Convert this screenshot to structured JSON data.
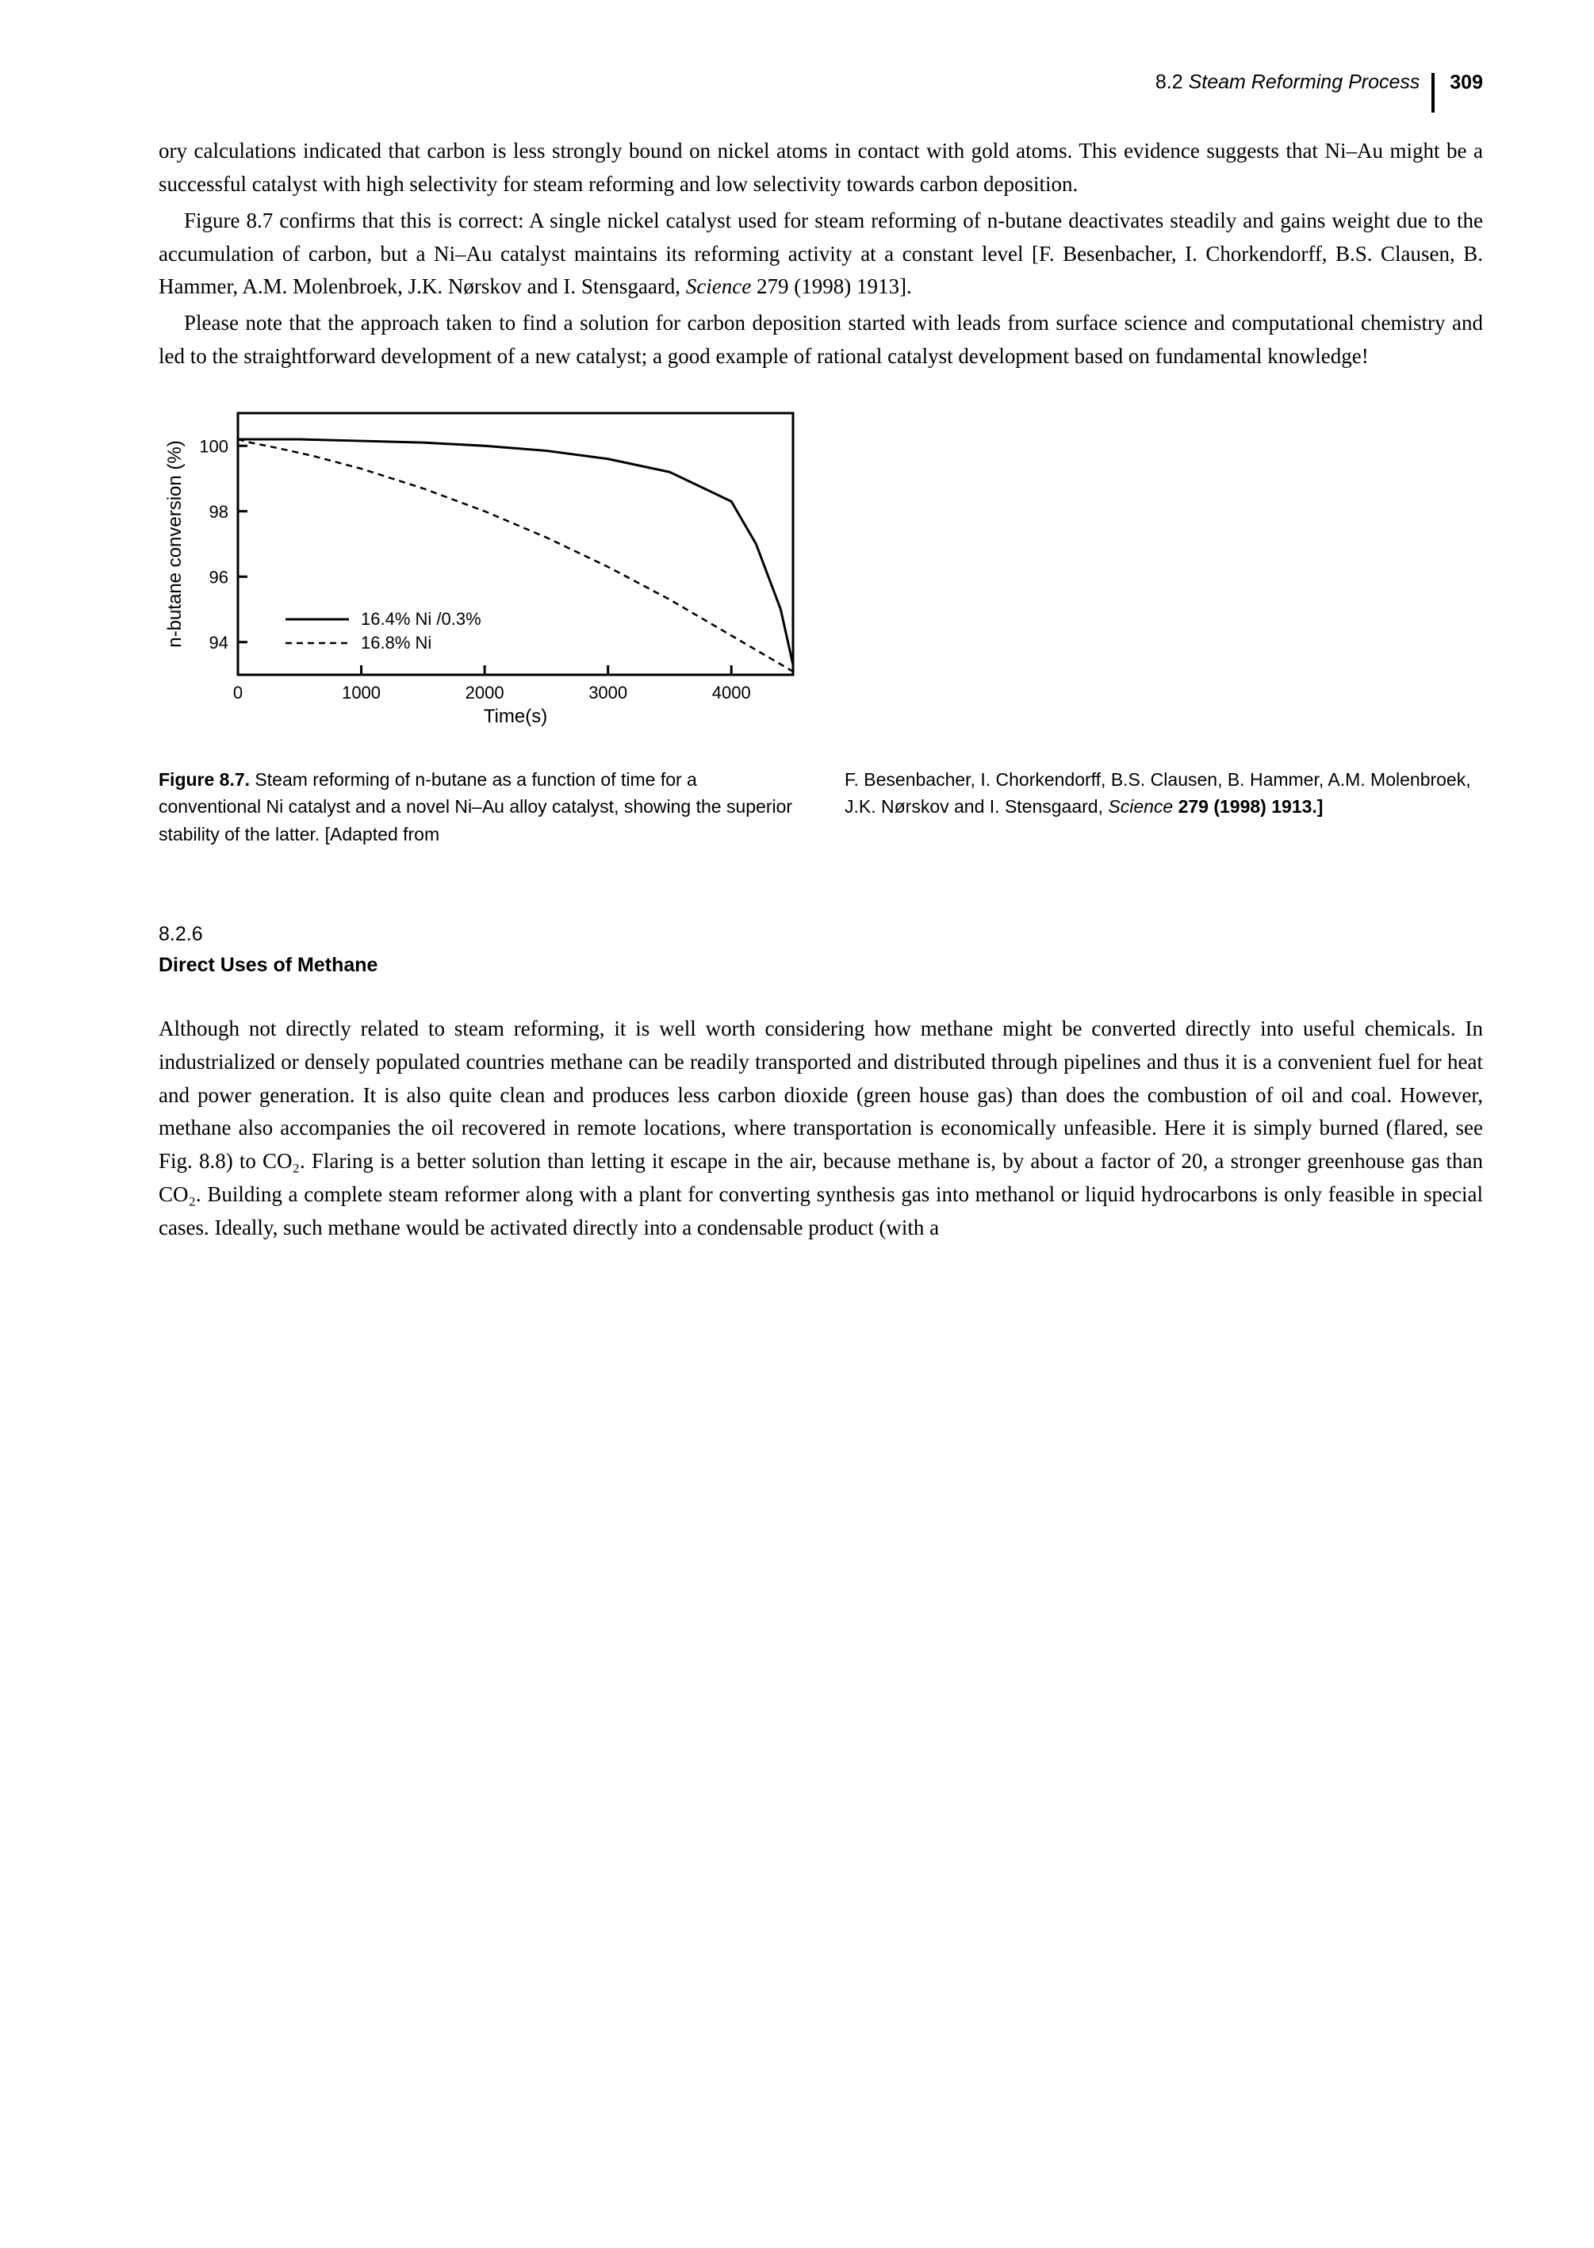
{
  "header": {
    "section_title": "8.2 Steam Reforming Process",
    "page_number": "309"
  },
  "paragraphs": {
    "p1": "ory calculations indicated that carbon is less strongly bound on nickel atoms in contact with gold atoms. This evidence suggests that Ni–Au might be a successful catalyst with high selectivity for steam reforming and low selectivity towards carbon deposition.",
    "p2_a": "Figure 8.7 confirms that this is correct: A single nickel catalyst used for steam reforming of n-butane deactivates steadily and gains weight due to the accumulation of carbon, but a Ni–Au catalyst maintains its reforming activity at a constant level [F. Besenbacher, I. Chorkendorff, B.S. Clausen, B. Hammer, A.M. Molenbroek, J.K. Nørskov and I. Stensgaard, ",
    "p2_italic": "Science",
    "p2_b": " 279 (1998) 1913].",
    "p3": "Please note that the approach taken to find a solution for carbon deposition started with leads from surface science and computational chemistry and led to the straightforward development of a new catalyst; a good example of rational catalyst development based on fundamental knowledge!"
  },
  "figure": {
    "chart": {
      "type": "line",
      "background_color": "#ffffff",
      "axis_color": "#000000",
      "xlabel": "Time(s)",
      "ylabel": "n-butane conversion (%)",
      "label_fontsize": 24,
      "tick_fontsize": 22,
      "xlim": [
        0,
        4500
      ],
      "ylim": [
        93,
        101
      ],
      "xticks": [
        0,
        1000,
        2000,
        3000,
        4000
      ],
      "yticks": [
        94,
        96,
        98,
        100
      ],
      "series": [
        {
          "name": "16.4% Ni /0.3%",
          "color": "#000000",
          "line_width": 3,
          "dash": "solid",
          "x": [
            0,
            200,
            500,
            1000,
            1500,
            2000,
            2500,
            3000,
            3500,
            4000,
            4200,
            4400,
            4500
          ],
          "y": [
            100.2,
            100.2,
            100.2,
            100.15,
            100.1,
            100.0,
            99.85,
            99.6,
            99.2,
            98.3,
            97.0,
            95.0,
            93.3
          ]
        },
        {
          "name": "16.8% Ni",
          "color": "#000000",
          "line_width": 2.5,
          "dash": "dashed",
          "x": [
            0,
            100,
            300,
            600,
            1000,
            1500,
            2000,
            2500,
            3000,
            3500,
            4000,
            4500
          ],
          "y": [
            100.2,
            100.1,
            99.95,
            99.7,
            99.3,
            98.7,
            98.0,
            97.2,
            96.3,
            95.3,
            94.2,
            93.1
          ]
        }
      ],
      "legend": {
        "position": "lower-left-inside",
        "fontsize": 22
      }
    },
    "caption": {
      "left_bold": "Figure 8.7.",
      "left_text": "   Steam reforming of n-butane as a function of time for a conventional Ni catalyst and a novel Ni–Au alloy catalyst, showing the superior stability of the latter. [Adapted from",
      "right_a": "F. Besenbacher, I. Chorkendorff, B.S. Clausen, B. Hammer, A.M. Molenbroek, J.K. Nørskov and I. Stensgaard, ",
      "right_italic": "Science",
      "right_b": " 279 (1998) 1913.]"
    }
  },
  "section": {
    "number": "8.2.6",
    "title": "Direct Uses of Methane"
  },
  "paragraphs2": {
    "p4": "Although not directly related to steam reforming, it is well worth considering how methane might be converted directly into useful chemicals. In industrialized or densely populated countries methane can be readily transported and distributed through pipelines and thus it is a convenient fuel for heat and power generation. It is also quite clean and produces less carbon dioxide (green house gas) than does the combustion of oil and coal. However, methane also accompanies the oil recovered in remote locations, where transportation is economically unfeasible. Here it is simply burned (flared, see Fig. 8.8) to CO₂. Flaring is a better solution than letting it escape in the air, because methane is, by about a factor of 20, a stronger greenhouse gas than CO₂. Building a complete steam reformer along with a plant for converting synthesis gas into methanol or liquid hydrocarbons is only feasible in special cases. Ideally, such methane would be activated directly into a condensable product (with a"
  }
}
